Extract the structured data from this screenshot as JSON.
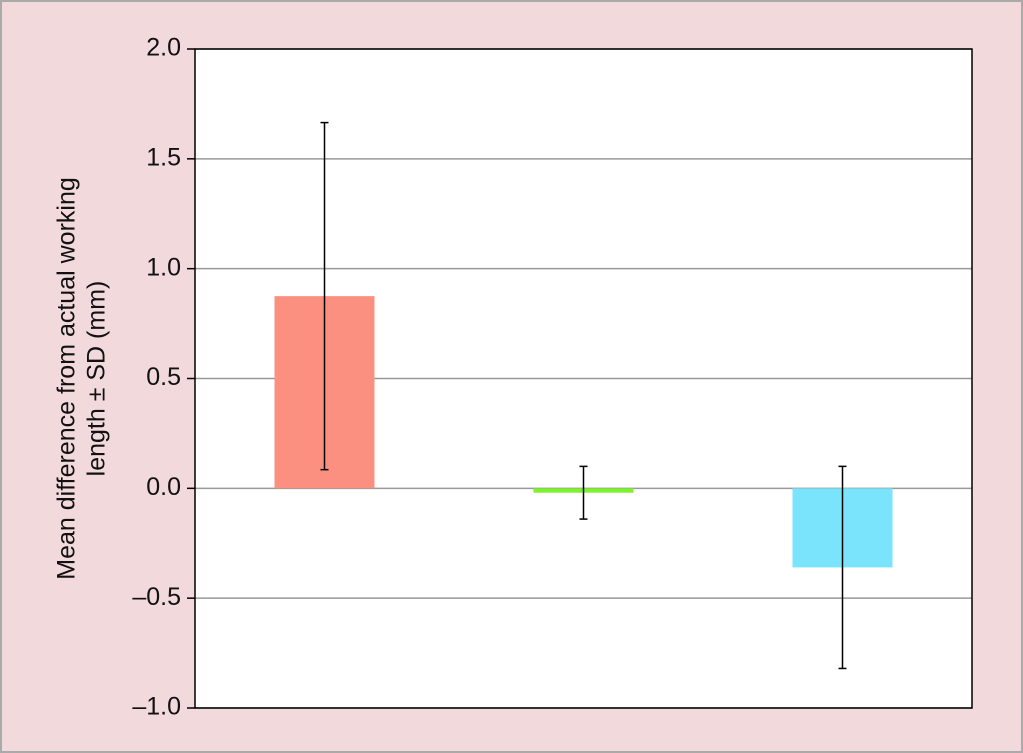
{
  "chart_data": {
    "type": "bar",
    "ylabel": [
      "Mean difference from actual working",
      "length ± SD (mm)"
    ],
    "categories": [
      null,
      null,
      null
    ],
    "series": [
      {
        "values": [
          0.875,
          -0.02,
          -0.36
        ],
        "errors": [
          0.79,
          0.12,
          0.46
        ],
        "colors": [
          "#fb9081",
          "#7df22d",
          "#79e4fb"
        ]
      }
    ],
    "ylim": [
      -1.0,
      2.0
    ],
    "yticks": [
      {
        "value": -1.0,
        "label": "–1.0"
      },
      {
        "value": -0.5,
        "label": "–0.5"
      },
      {
        "value": 0.0,
        "label": "0.0"
      },
      {
        "value": 0.5,
        "label": "0.5"
      },
      {
        "value": 1.0,
        "label": "1.0"
      },
      {
        "value": 1.5,
        "label": "1.5"
      },
      {
        "value": 2.0,
        "label": "2.0"
      }
    ],
    "grid": true
  }
}
